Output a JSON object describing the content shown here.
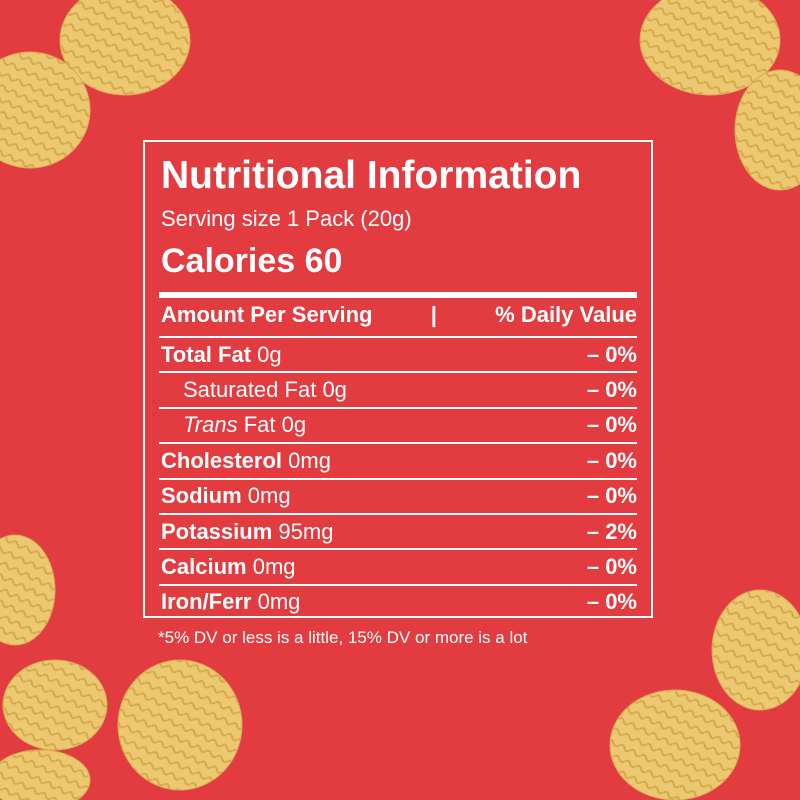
{
  "label": {
    "title": "Nutritional Information",
    "serving": "Serving size 1 Pack (20g)",
    "calories": {
      "label": "Calories",
      "value": 60
    },
    "header": {
      "left": "Amount Per Serving",
      "separator": "|",
      "right": "% Daily Value"
    },
    "rows": [
      {
        "name": "Total Fat",
        "amount": "0g",
        "dv": "– 0%"
      },
      {
        "name": "Saturated Fat",
        "amount": "0g",
        "dv": "– 0%"
      },
      {
        "name_italic": "Trans",
        "name": "Fat",
        "amount": "0g",
        "dv": "– 0%"
      },
      {
        "name": "Cholesterol",
        "amount": "0mg",
        "dv": "– 0%"
      },
      {
        "name": "Sodium",
        "amount": "0mg",
        "dv": "– 0%"
      },
      {
        "name": "Potassium",
        "amount": "95mg",
        "dv": "– 2%"
      },
      {
        "name": "Calcium",
        "amount": "0mg",
        "dv": "– 0%"
      },
      {
        "name": "Iron/Ferr",
        "amount": "0mg",
        "dv": "– 0%"
      }
    ],
    "footnote": "*5% DV or less is a little, 15% DV or more is a lot"
  }
}
